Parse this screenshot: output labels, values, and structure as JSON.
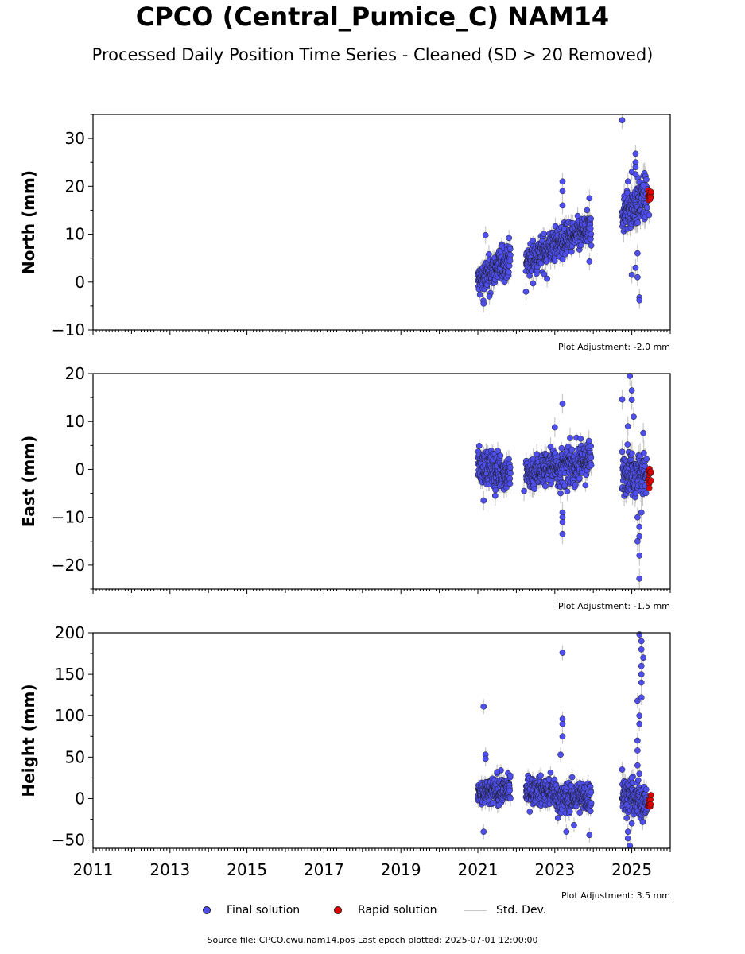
{
  "title": "CPCO (Central_Pumice_C) NAM14",
  "subtitle": "Processed Daily Position Time Series - Cleaned (SD > 20 Removed)",
  "legend": {
    "final": "Final solution",
    "rapid": "Rapid solution",
    "std": "Std. Dev."
  },
  "source": "Source file: CPCO.cwu.nam14.pos  Last epoch plotted: 2025-07-01 12:00:00",
  "colors": {
    "final": "#4f4ff0",
    "rapid": "#e00000",
    "std": "#c8c8c8",
    "edge": "#1a1a1a"
  },
  "chart_data": [
    {
      "type": "scatter",
      "ylabel": "North (mm)",
      "xlim": [
        2011,
        2026
      ],
      "ylim": [
        -10,
        35
      ],
      "yticks": [
        -10,
        0,
        10,
        20,
        30
      ],
      "xticks": [
        2011,
        2013,
        2015,
        2017,
        2019,
        2021,
        2023,
        2025
      ],
      "adjustment": "Plot Adjustment: -2.0 mm",
      "segments": [
        {
          "x0": 2021.0,
          "x1": 2021.85,
          "y0": 0,
          "y1": 5,
          "spread": 2.0,
          "sd": 1.4
        },
        {
          "x0": 2022.25,
          "x1": 2023.05,
          "y0": 4,
          "y1": 8,
          "spread": 2.0,
          "sd": 1.5
        },
        {
          "x0": 2023.05,
          "x1": 2023.95,
          "y0": 8,
          "y1": 11,
          "spread": 1.8,
          "sd": 1.5
        },
        {
          "x0": 2024.75,
          "x1": 2025.4,
          "y0": 14,
          "y1": 18,
          "spread": 2.5,
          "sd": 2.0
        }
      ],
      "rapid": {
        "x0": 2025.42,
        "x1": 2025.5,
        "y": 18,
        "spread": 1.2
      },
      "outliers": [
        [
          2021.2,
          9.8
        ],
        [
          2021.15,
          -4.5
        ],
        [
          2021.3,
          -3
        ],
        [
          2022.25,
          -2
        ],
        [
          2022.8,
          0.7
        ],
        [
          2023.2,
          21
        ],
        [
          2023.2,
          19
        ],
        [
          2023.2,
          16
        ],
        [
          2023.9,
          17.5
        ],
        [
          2023.9,
          4.3
        ],
        [
          2024.75,
          33.8
        ],
        [
          2024.9,
          21
        ],
        [
          2025.0,
          23
        ],
        [
          2025.1,
          26.8
        ],
        [
          2025.1,
          25
        ],
        [
          2025.1,
          24
        ],
        [
          2025.1,
          22.5
        ],
        [
          2025.0,
          1.5
        ],
        [
          2025.1,
          3
        ],
        [
          2025.15,
          1
        ],
        [
          2025.2,
          -3.2
        ],
        [
          2025.2,
          -3.8
        ],
        [
          2025.15,
          6
        ],
        [
          2025.3,
          20.2
        ],
        [
          2025.45,
          14
        ]
      ]
    },
    {
      "type": "scatter",
      "ylabel": "East (mm)",
      "xlim": [
        2011,
        2026
      ],
      "ylim": [
        -25,
        20
      ],
      "yticks": [
        -20,
        -10,
        0,
        10,
        20
      ],
      "xticks": [
        2011,
        2013,
        2015,
        2017,
        2019,
        2021,
        2023,
        2025
      ],
      "adjustment": "Plot Adjustment: -1.5 mm",
      "segments": [
        {
          "x0": 2021.0,
          "x1": 2021.85,
          "y0": 1,
          "y1": -1,
          "spread": 2.0,
          "sd": 1.6
        },
        {
          "x0": 2022.25,
          "x1": 2023.05,
          "y0": -1,
          "y1": 1,
          "spread": 2.0,
          "sd": 1.6
        },
        {
          "x0": 2023.05,
          "x1": 2023.95,
          "y0": 0,
          "y1": 2,
          "spread": 2.2,
          "sd": 1.6
        },
        {
          "x0": 2024.75,
          "x1": 2025.4,
          "y0": 0,
          "y1": -1,
          "spread": 2.5,
          "sd": 2.0
        }
      ],
      "rapid": {
        "x0": 2025.42,
        "x1": 2025.5,
        "y": -1.5,
        "spread": 1.2
      },
      "outliers": [
        [
          2021.15,
          -6.5
        ],
        [
          2021.45,
          -5.5
        ],
        [
          2022.2,
          -4.5
        ],
        [
          2023.0,
          8.8
        ],
        [
          2023.2,
          13.7
        ],
        [
          2023.2,
          -9
        ],
        [
          2023.2,
          -10
        ],
        [
          2023.2,
          -11
        ],
        [
          2023.2,
          -13.5
        ],
        [
          2023.15,
          -5
        ],
        [
          2024.75,
          14.6
        ],
        [
          2024.95,
          19.5
        ],
        [
          2025.0,
          16.5
        ],
        [
          2025.0,
          14.5
        ],
        [
          2024.9,
          9
        ],
        [
          2025.05,
          11
        ],
        [
          2025.3,
          7.6
        ],
        [
          2025.15,
          -10
        ],
        [
          2025.2,
          -12
        ],
        [
          2025.2,
          -14
        ],
        [
          2025.15,
          -15
        ],
        [
          2025.2,
          -18
        ],
        [
          2025.2,
          -22.8
        ],
        [
          2025.25,
          -9
        ],
        [
          2025.1,
          -5
        ]
      ]
    },
    {
      "type": "scatter",
      "ylabel": "Height (mm)",
      "xlim": [
        2011,
        2026
      ],
      "ylim": [
        -60,
        200
      ],
      "yticks": [
        -50,
        0,
        50,
        100,
        150,
        200
      ],
      "xticks": [
        2011,
        2013,
        2015,
        2017,
        2019,
        2021,
        2023,
        2025
      ],
      "xticklabels": [
        "2011",
        "2013",
        "2015",
        "2017",
        "2019",
        "2021",
        "2023",
        "2025"
      ],
      "adjustment": "Plot Adjustment: 3.5 mm",
      "segments": [
        {
          "x0": 2021.0,
          "x1": 2021.85,
          "y0": 5,
          "y1": 12,
          "spread": 9,
          "sd": 7
        },
        {
          "x0": 2022.25,
          "x1": 2023.05,
          "y0": 10,
          "y1": 8,
          "spread": 9,
          "sd": 7
        },
        {
          "x0": 2023.05,
          "x1": 2023.95,
          "y0": 0,
          "y1": 3,
          "spread": 10,
          "sd": 8
        },
        {
          "x0": 2024.75,
          "x1": 2025.4,
          "y0": 5,
          "y1": -5,
          "spread": 12,
          "sd": 9
        }
      ],
      "rapid": {
        "x0": 2025.42,
        "x1": 2025.5,
        "y": -7,
        "spread": 6
      },
      "outliers": [
        [
          2021.15,
          111
        ],
        [
          2021.2,
          53
        ],
        [
          2021.2,
          48
        ],
        [
          2021.15,
          -40
        ],
        [
          2021.5,
          32
        ],
        [
          2023.2,
          176
        ],
        [
          2023.2,
          96
        ],
        [
          2023.2,
          90
        ],
        [
          2023.2,
          75
        ],
        [
          2023.15,
          53
        ],
        [
          2023.3,
          -40
        ],
        [
          2023.5,
          -32
        ],
        [
          2023.9,
          -44
        ],
        [
          2024.75,
          35
        ],
        [
          2025.0,
          25
        ],
        [
          2024.9,
          -40
        ],
        [
          2024.9,
          -48
        ],
        [
          2024.95,
          -57
        ],
        [
          2025.0,
          -30
        ],
        [
          2025.15,
          58
        ],
        [
          2025.15,
          70
        ],
        [
          2025.2,
          90
        ],
        [
          2025.2,
          100
        ],
        [
          2025.15,
          118
        ],
        [
          2025.25,
          122
        ],
        [
          2025.25,
          140
        ],
        [
          2025.25,
          150
        ],
        [
          2025.25,
          160
        ],
        [
          2025.3,
          170
        ],
        [
          2025.25,
          180
        ],
        [
          2025.25,
          190
        ],
        [
          2025.2,
          198
        ],
        [
          2025.15,
          40
        ],
        [
          2025.2,
          30
        ]
      ]
    }
  ]
}
